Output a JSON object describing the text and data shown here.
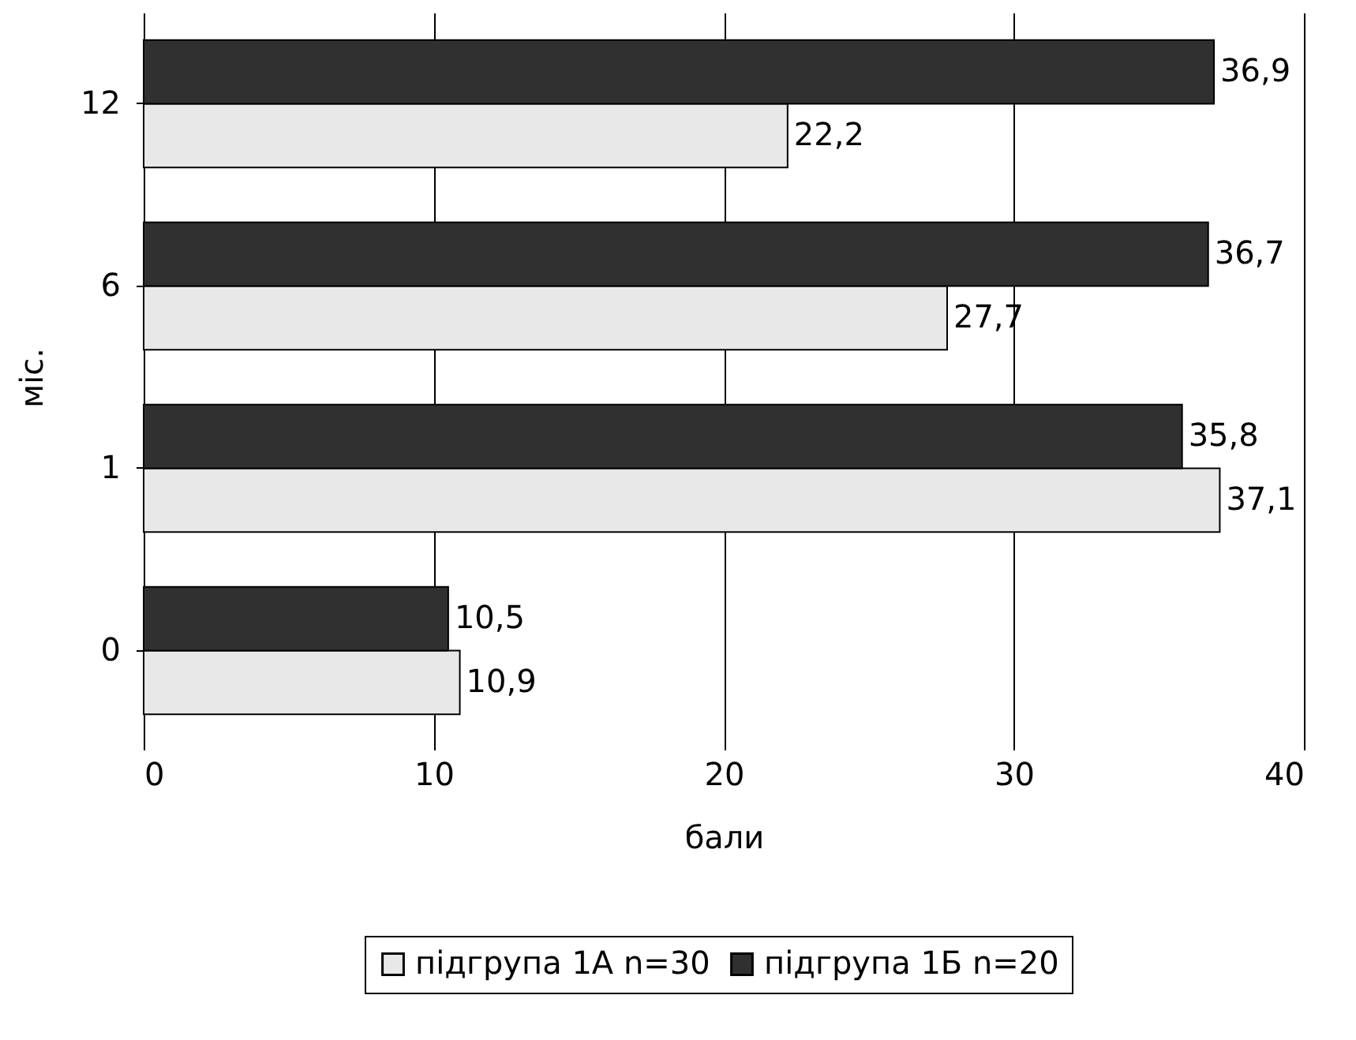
{
  "chart_data": {
    "type": "bar",
    "orientation": "horizontal",
    "categories": [
      "12",
      "6",
      "1",
      "0"
    ],
    "series": [
      {
        "name": "підгрупа 1А n=30",
        "color": "#e8e8e8",
        "values": [
          22.2,
          27.7,
          37.1,
          10.9
        ],
        "value_labels": [
          "22,2",
          "27,7",
          "37,1",
          "10,9"
        ]
      },
      {
        "name": "підгрупа 1Б n=20",
        "color": "#303030",
        "values": [
          36.9,
          36.7,
          35.8,
          10.5
        ],
        "value_labels": [
          "36,9",
          "36,7",
          "35,8",
          "10,5"
        ]
      }
    ],
    "xlim": [
      0,
      40
    ],
    "xticks": [
      0,
      10,
      20,
      30,
      40
    ],
    "xlabel": "бали",
    "ylabel": "міс.",
    "grid": "x",
    "legend": "bottom"
  }
}
